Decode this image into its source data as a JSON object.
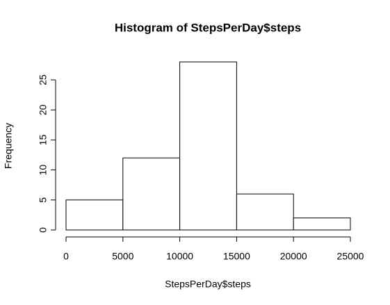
{
  "chart_data": {
    "type": "histogram",
    "title": "Histogram of StepsPerDay$steps",
    "x_label": "StepsPerDay$steps",
    "y_label": "Frequency",
    "bins": [
      0,
      5000,
      10000,
      15000,
      20000,
      25000
    ],
    "values": [
      5,
      12,
      28,
      6,
      2
    ],
    "color": "#ffffff",
    "xlim": [
      0,
      25000
    ],
    "xticks": [
      0,
      5000,
      10000,
      15000,
      20000,
      25000
    ],
    "ylim": [
      0,
      28
    ],
    "yticks": [
      0,
      5,
      10,
      15,
      20,
      25
    ]
  }
}
